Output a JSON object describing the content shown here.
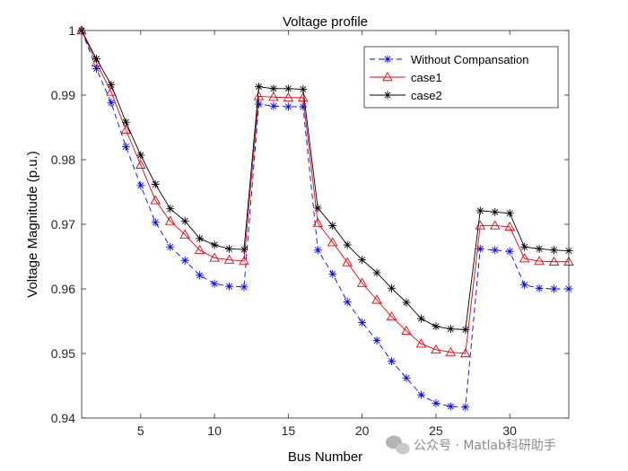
{
  "chart_data": {
    "type": "line",
    "title": "Voltage profile",
    "xlabel": "Bus Number",
    "ylabel": "Voltage Magnitude (p.u.)",
    "xlim": [
      1,
      34
    ],
    "ylim": [
      0.94,
      1.0
    ],
    "xticks": [
      5,
      10,
      15,
      20,
      25,
      30
    ],
    "yticks": [
      0.94,
      0.95,
      0.96,
      0.97,
      0.98,
      0.99,
      1.0
    ],
    "ytick_labels": [
      "0.94",
      "0.95",
      "0.96",
      "0.97",
      "0.98",
      "0.99",
      "1"
    ],
    "x": [
      1,
      2,
      3,
      4,
      5,
      6,
      7,
      8,
      9,
      10,
      11,
      12,
      13,
      14,
      15,
      16,
      17,
      18,
      19,
      20,
      21,
      22,
      23,
      24,
      25,
      26,
      27,
      28,
      29,
      30,
      31,
      32,
      33,
      34
    ],
    "series": [
      {
        "name": "Without Compansation",
        "color": "#0000ff",
        "line_style": "dashed",
        "marker": "asterisk",
        "values": [
          1.0,
          0.9941,
          0.9888,
          0.982,
          0.976,
          0.9703,
          0.9665,
          0.9644,
          0.9621,
          0.9608,
          0.9604,
          0.9603,
          0.9886,
          0.9883,
          0.9882,
          0.9882,
          0.966,
          0.9623,
          0.958,
          0.9548,
          0.952,
          0.9488,
          0.9462,
          0.9436,
          0.9423,
          0.9418,
          0.9417,
          0.9662,
          0.966,
          0.9658,
          0.9606,
          0.9601,
          0.96,
          0.96
        ]
      },
      {
        "name": "case1",
        "color": "#e8000b",
        "line_style": "solid",
        "marker": "triangle",
        "values": [
          1.0,
          0.995,
          0.9905,
          0.9846,
          0.9792,
          0.9737,
          0.9705,
          0.9684,
          0.966,
          0.9648,
          0.9645,
          0.9643,
          0.9898,
          0.9897,
          0.9896,
          0.9896,
          0.9702,
          0.9672,
          0.9641,
          0.9609,
          0.9583,
          0.9557,
          0.9535,
          0.9515,
          0.9506,
          0.9502,
          0.95,
          0.9698,
          0.9698,
          0.9696,
          0.9647,
          0.9643,
          0.9642,
          0.9642
        ]
      },
      {
        "name": "case2",
        "color": "#000000",
        "line_style": "solid",
        "marker": "asterisk",
        "values": [
          1.0,
          0.9956,
          0.9916,
          0.9858,
          0.9807,
          0.9762,
          0.9724,
          0.9705,
          0.9678,
          0.9668,
          0.9662,
          0.9661,
          0.9913,
          0.991,
          0.991,
          0.9909,
          0.9725,
          0.9698,
          0.9668,
          0.9645,
          0.9625,
          0.9601,
          0.9579,
          0.9554,
          0.9542,
          0.9538,
          0.9537,
          0.9721,
          0.9719,
          0.9717,
          0.9665,
          0.9662,
          0.966,
          0.9659
        ]
      }
    ],
    "legend_position": "top-right",
    "grid": false
  },
  "watermark": {
    "text": "公众号 · Matlab科研助手"
  }
}
